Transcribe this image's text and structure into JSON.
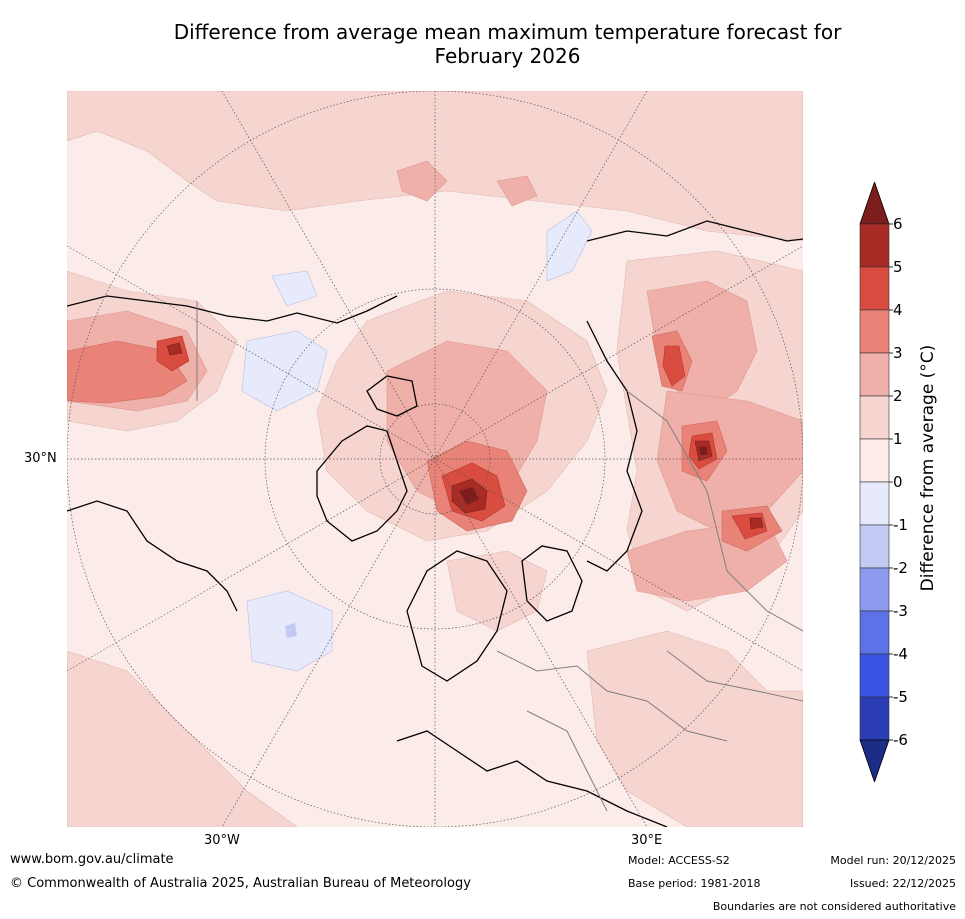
{
  "title_line1": "Difference from average mean maximum temperature forecast for",
  "title_line2": "February 2026",
  "map": {
    "projection": "North polar stereographic",
    "lat_label": "30°N",
    "lon_labels": [
      "30°W",
      "30°E"
    ]
  },
  "colorbar": {
    "label": "Difference from average (°C)",
    "ticks": [
      "6",
      "5",
      "4",
      "3",
      "2",
      "1",
      "0",
      "-1",
      "-2",
      "-3",
      "-4",
      "-5",
      "-6"
    ],
    "colors": {
      "above_6": "#7b1d1a",
      "5_6": "#a82b25",
      "4_5": "#d94c40",
      "3_4": "#e98378",
      "2_3": "#efb0a9",
      "1_2": "#f6d4d0",
      "0_1": "#fbece9",
      "m1_0": "#e7eafb",
      "m2_m1": "#c2c9f3",
      "m3_m2": "#8b9aed",
      "m4_m3": "#5c72e6",
      "m5_m4": "#3a53e2",
      "m6_m5": "#2a3db3",
      "below_m6": "#1c2c87"
    }
  },
  "footer": {
    "website": "www.bom.gov.au/climate",
    "copyright": "© Commonwealth of Australia 2025, Australian Bureau of Meteorology",
    "model": "Model: ACCESS-S2",
    "base_period": "Base period: 1981-2018",
    "model_run": "Model run: 20/12/2025",
    "issued": "Issued: 22/12/2025",
    "boundaries_note": "Boundaries are not considered authoritative"
  }
}
